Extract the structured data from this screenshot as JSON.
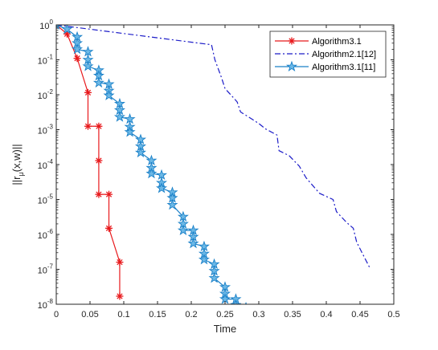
{
  "chart_data": {
    "type": "line",
    "xlabel": "Time",
    "ylabel": "||r_μ(x,w)||",
    "ylabel_main": "||r",
    "ylabel_sub": "μ",
    "ylabel_tail": "(x,w)||",
    "x_scale": "linear",
    "y_scale": "log",
    "xlim": [
      0,
      0.5
    ],
    "ylim": [
      1e-08,
      1
    ],
    "x_ticks": [
      0,
      0.05,
      0.1,
      0.15,
      0.2,
      0.25,
      0.3,
      0.35,
      0.4,
      0.45,
      0.5
    ],
    "x_tick_labels": [
      "0",
      "0.05",
      "0.1",
      "0.15",
      "0.2",
      "0.25",
      "0.3",
      "0.35",
      "0.4",
      "0.45",
      "0.5"
    ],
    "y_ticks": [
      1e-08,
      1e-07,
      1e-06,
      1e-05,
      0.0001,
      0.001,
      0.01,
      0.1,
      1
    ],
    "y_tick_bases": [
      "10",
      "10",
      "10",
      "10",
      "10",
      "10",
      "10",
      "10",
      "10"
    ],
    "y_tick_exponents": [
      "-8",
      "-7",
      "-6",
      "-5",
      "-4",
      "-3",
      "-2",
      "-1",
      "0"
    ],
    "grid": false,
    "legend_position": "top-right",
    "series": [
      {
        "name": "Algorithm3.1",
        "color": "#e8191c",
        "line_style": "solid",
        "marker": "asterisk",
        "points": [
          [
            0.0,
            1.0
          ],
          [
            0.016,
            0.55
          ],
          [
            0.031,
            0.11
          ],
          [
            0.047,
            0.0115
          ],
          [
            0.047,
            0.00125
          ],
          [
            0.063,
            0.00125
          ],
          [
            0.063,
            0.00013
          ],
          [
            0.063,
            1.4e-05
          ],
          [
            0.078,
            1.4e-05
          ],
          [
            0.078,
            1.5e-06
          ],
          [
            0.094,
            1.6e-07
          ],
          [
            0.094,
            1.7e-08
          ]
        ]
      },
      {
        "name": "Algorithm2.1[12]",
        "color": "#1c1cc8",
        "line_style": "dashdot",
        "marker": "none",
        "points": [
          [
            0.0,
            1.0
          ],
          [
            0.23,
            0.27
          ],
          [
            0.235,
            0.1
          ],
          [
            0.245,
            0.03
          ],
          [
            0.25,
            0.015
          ],
          [
            0.263,
            0.008
          ],
          [
            0.268,
            0.0062
          ],
          [
            0.273,
            0.0032
          ],
          [
            0.285,
            0.0023
          ],
          [
            0.3,
            0.0015
          ],
          [
            0.31,
            0.00105
          ],
          [
            0.327,
            0.0007
          ],
          [
            0.33,
            0.00025
          ],
          [
            0.345,
            0.00018
          ],
          [
            0.36,
            9e-05
          ],
          [
            0.37,
            4.2e-05
          ],
          [
            0.38,
            2.5e-05
          ],
          [
            0.39,
            1.5e-05
          ],
          [
            0.41,
            1e-05
          ],
          [
            0.415,
            4.5e-06
          ],
          [
            0.43,
            2.2e-06
          ],
          [
            0.44,
            1.5e-06
          ],
          [
            0.445,
            6e-07
          ],
          [
            0.455,
            2.5e-07
          ],
          [
            0.465,
            1.05e-07
          ]
        ]
      },
      {
        "name": "Algorithm3.1[11]",
        "color": "#1a80c8",
        "line_style": "solid",
        "marker": "pentagram",
        "points": [
          [
            0.0,
            1.0
          ],
          [
            0.016,
            0.75
          ],
          [
            0.031,
            0.45
          ],
          [
            0.031,
            0.3
          ],
          [
            0.031,
            0.2
          ],
          [
            0.047,
            0.17
          ],
          [
            0.047,
            0.1
          ],
          [
            0.047,
            0.065
          ],
          [
            0.063,
            0.05
          ],
          [
            0.063,
            0.035
          ],
          [
            0.063,
            0.022
          ],
          [
            0.078,
            0.02
          ],
          [
            0.078,
            0.013
          ],
          [
            0.078,
            0.0095
          ],
          [
            0.094,
            0.0055
          ],
          [
            0.094,
            0.0036
          ],
          [
            0.094,
            0.0023
          ],
          [
            0.109,
            0.002
          ],
          [
            0.109,
            0.0012
          ],
          [
            0.109,
            0.00085
          ],
          [
            0.125,
            0.00052
          ],
          [
            0.125,
            0.00033
          ],
          [
            0.125,
            0.00022
          ],
          [
            0.141,
            0.00013
          ],
          [
            0.141,
            8e-05
          ],
          [
            0.141,
            5.5e-05
          ],
          [
            0.156,
            5e-05
          ],
          [
            0.156,
            3e-05
          ],
          [
            0.156,
            2.1e-05
          ],
          [
            0.172,
            1.6e-05
          ],
          [
            0.172,
            1.1e-05
          ],
          [
            0.172,
            7e-06
          ],
          [
            0.188,
            3.2e-06
          ],
          [
            0.188,
            2e-06
          ],
          [
            0.188,
            1.3e-06
          ],
          [
            0.203,
            1.3e-06
          ],
          [
            0.203,
            8.5e-07
          ],
          [
            0.203,
            5.5e-07
          ],
          [
            0.219,
            4.5e-07
          ],
          [
            0.219,
            2.8e-07
          ],
          [
            0.219,
            1.9e-07
          ],
          [
            0.234,
            1.4e-07
          ],
          [
            0.234,
            9e-08
          ],
          [
            0.234,
            5.6e-08
          ],
          [
            0.25,
            3.1e-08
          ],
          [
            0.25,
            2e-08
          ],
          [
            0.25,
            1.4e-08
          ],
          [
            0.266,
            1.4e-08
          ],
          [
            0.266,
            9.5e-09
          ],
          [
            0.281,
            8e-09
          ]
        ]
      }
    ]
  }
}
